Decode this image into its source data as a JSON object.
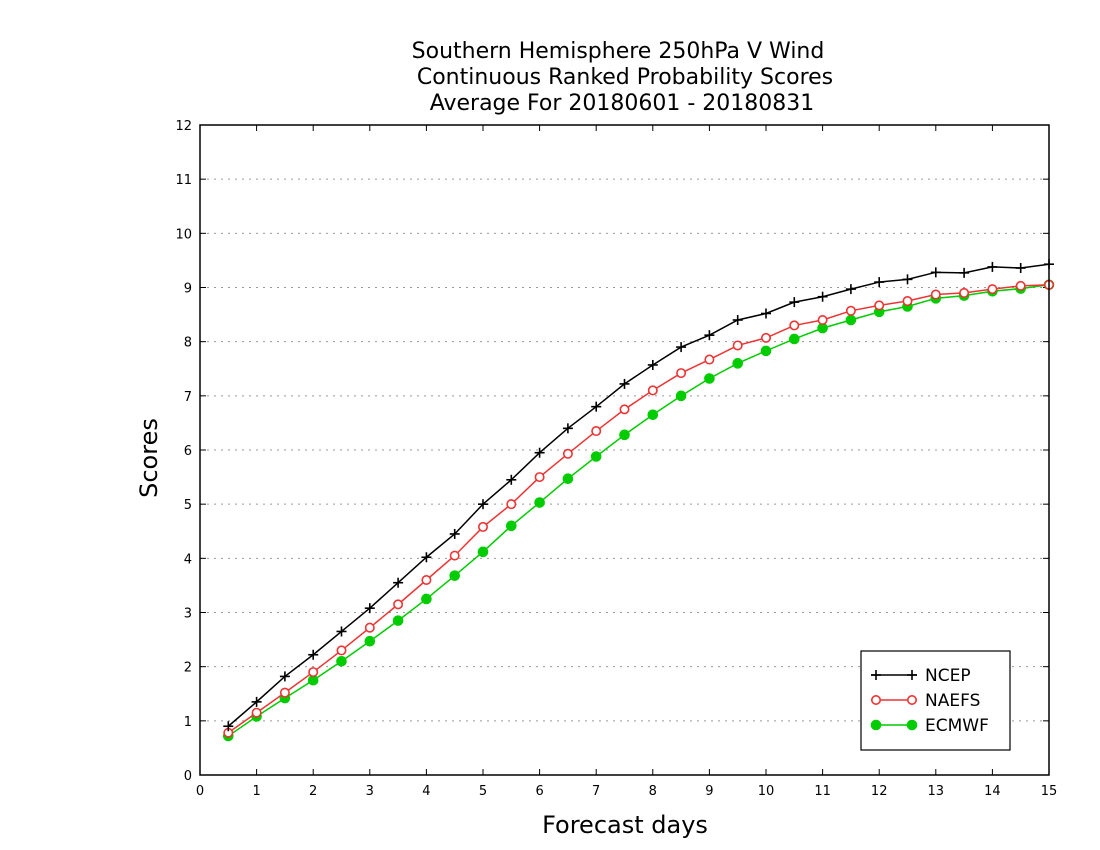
{
  "chart_data": {
    "type": "line",
    "title": [
      "Southern Hemisphere 250hPa V Wind",
      "Continuous Ranked Probability Scores",
      "Average For 20180601 - 20180831"
    ],
    "xlabel": "Forecast days",
    "ylabel": "Scores",
    "xlim": [
      0,
      15
    ],
    "ylim": [
      0,
      12
    ],
    "x_ticks": [
      "0",
      "1",
      "2",
      "3",
      "4",
      "5",
      "6",
      "7",
      "8",
      "9",
      "10",
      "11",
      "12",
      "13",
      "14",
      "15"
    ],
    "y_ticks": [
      "0",
      "1",
      "2",
      "3",
      "4",
      "5",
      "6",
      "7",
      "8",
      "9",
      "10",
      "11",
      "12"
    ],
    "grid": "horizontal-dotted",
    "legend_position": "bottom-right",
    "x": [
      0.5,
      1.0,
      1.5,
      2.0,
      2.5,
      3.0,
      3.5,
      4.0,
      4.5,
      5.0,
      5.5,
      6.0,
      6.5,
      7.0,
      7.5,
      8.0,
      8.5,
      9.0,
      9.5,
      10.0,
      10.5,
      11.0,
      11.5,
      12.0,
      12.5,
      13.0,
      13.5,
      14.0,
      14.5,
      15.0
    ],
    "series": [
      {
        "name": "NCEP",
        "color": "#000000",
        "marker": "plus",
        "values": [
          0.9,
          1.35,
          1.82,
          2.22,
          2.65,
          3.08,
          3.55,
          4.02,
          4.45,
          5.0,
          5.45,
          5.95,
          6.4,
          6.8,
          7.22,
          7.57,
          7.9,
          8.12,
          8.4,
          8.52,
          8.73,
          8.83,
          8.97,
          9.1,
          9.15,
          9.28,
          9.27,
          9.38,
          9.36,
          9.43
        ]
      },
      {
        "name": "NAEFS",
        "color": "#ee3333",
        "marker": "open-circle",
        "values": [
          0.78,
          1.15,
          1.52,
          1.9,
          2.3,
          2.72,
          3.15,
          3.6,
          4.05,
          4.58,
          5.0,
          5.5,
          5.93,
          6.35,
          6.75,
          7.1,
          7.42,
          7.67,
          7.93,
          8.07,
          8.3,
          8.4,
          8.57,
          8.67,
          8.75,
          8.87,
          8.9,
          8.97,
          9.03,
          9.05
        ]
      },
      {
        "name": "ECMWF",
        "color": "#00cc00",
        "marker": "filled-circle",
        "values": [
          0.72,
          1.08,
          1.42,
          1.75,
          2.1,
          2.47,
          2.85,
          3.25,
          3.68,
          4.12,
          4.6,
          5.03,
          5.47,
          5.88,
          6.28,
          6.65,
          7.0,
          7.32,
          7.6,
          7.83,
          8.05,
          8.25,
          8.4,
          8.55,
          8.65,
          8.8,
          8.85,
          8.93,
          8.98,
          9.05
        ]
      }
    ]
  }
}
